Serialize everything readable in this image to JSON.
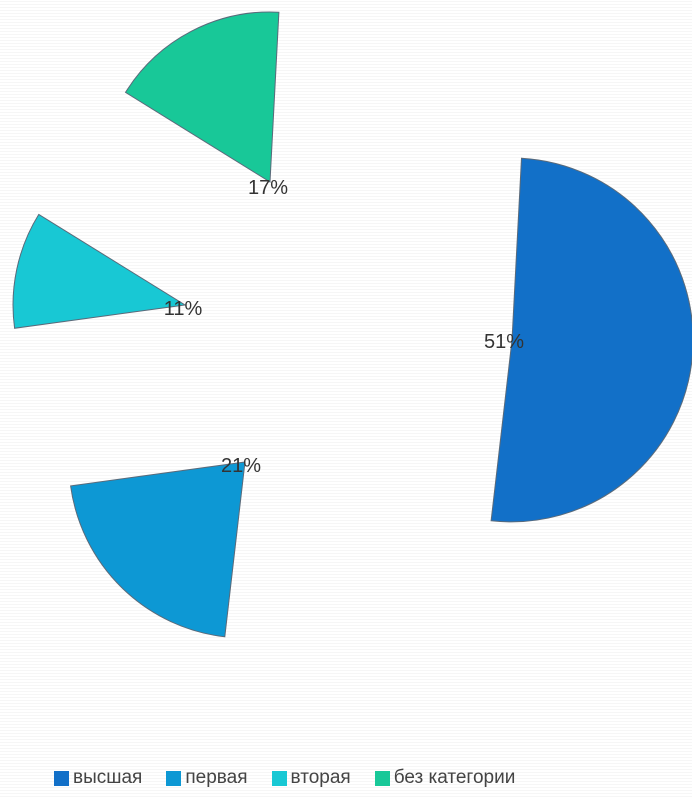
{
  "chart_data": {
    "type": "pie",
    "exploded": true,
    "legend_position": "bottom",
    "slices": [
      {
        "label": "высшая",
        "value": 51,
        "display": "51%",
        "color": "#1270c8"
      },
      {
        "label": "первая",
        "value": 21,
        "display": "21%",
        "color": "#0d98d4"
      },
      {
        "label": "вторая",
        "value": 11,
        "display": "11%",
        "color": "#18c8d4"
      },
      {
        "label": "без категории",
        "value": 17,
        "display": "17%",
        "color": "#18c898"
      }
    ]
  }
}
